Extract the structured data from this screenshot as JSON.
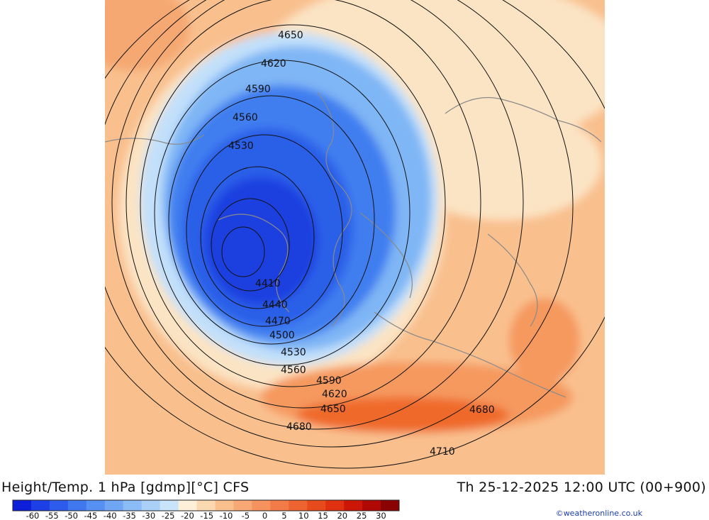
{
  "map": {
    "contours": [
      {
        "value": "4410"
      },
      {
        "value": "4440"
      },
      {
        "value": "4470"
      },
      {
        "value": "4500"
      },
      {
        "value": "4530"
      },
      {
        "value": "4560"
      },
      {
        "value": "4590"
      },
      {
        "value": "4620"
      },
      {
        "value": "4650"
      },
      {
        "value": "4680"
      },
      {
        "value": "4710"
      }
    ],
    "labels": [
      {
        "text": "4650"
      },
      {
        "text": "4620"
      },
      {
        "text": "4590"
      },
      {
        "text": "4560"
      },
      {
        "text": "4530"
      },
      {
        "text": "4410"
      },
      {
        "text": "4440"
      },
      {
        "text": "4470"
      },
      {
        "text": "4500"
      },
      {
        "text": "4530"
      },
      {
        "text": "4560"
      },
      {
        "text": "4590"
      },
      {
        "text": "4620"
      },
      {
        "text": "4650"
      },
      {
        "text": "4680"
      },
      {
        "text": "4680"
      },
      {
        "text": "4710"
      }
    ],
    "colors": {
      "cold_core": "#1a3fe0",
      "cold_mid": "#3f7ef0",
      "cold_outer": "#7fb6f5",
      "cool": "#c2e0fa",
      "neutral": "#fbe4c4",
      "warm": "#f9c08e",
      "warmer": "#f5995e",
      "hot": "#ef6a2c",
      "coast": "#8a8a8a",
      "contour": "#111111"
    }
  },
  "footer": {
    "title_left": "Height/Temp. 1 hPa [gdmp][°C] CFS",
    "title_right": "Th 25-12-2025 12:00 UTC (00+900)",
    "credit": "©weatheronline.co.uk"
  },
  "legend": {
    "colors": [
      "#0d1fd8",
      "#1d3fe6",
      "#2d5cec",
      "#3f78ef",
      "#5690f2",
      "#70a6f4",
      "#8cbcf6",
      "#aad0f8",
      "#c8e3fa",
      "#fdf0d8",
      "#fbd9b0",
      "#f9c08e",
      "#f7a874",
      "#f5925d",
      "#f27c47",
      "#ee6430",
      "#e74b1c",
      "#df3010",
      "#cc1708",
      "#b00804",
      "#8a0202"
    ],
    "ticks": [
      "-60",
      "-55",
      "-50",
      "-45",
      "-40",
      "-35",
      "-30",
      "-25",
      "-20",
      "-15",
      "-10",
      "-5",
      "0",
      "5",
      "10",
      "15",
      "20",
      "25",
      "30"
    ]
  }
}
